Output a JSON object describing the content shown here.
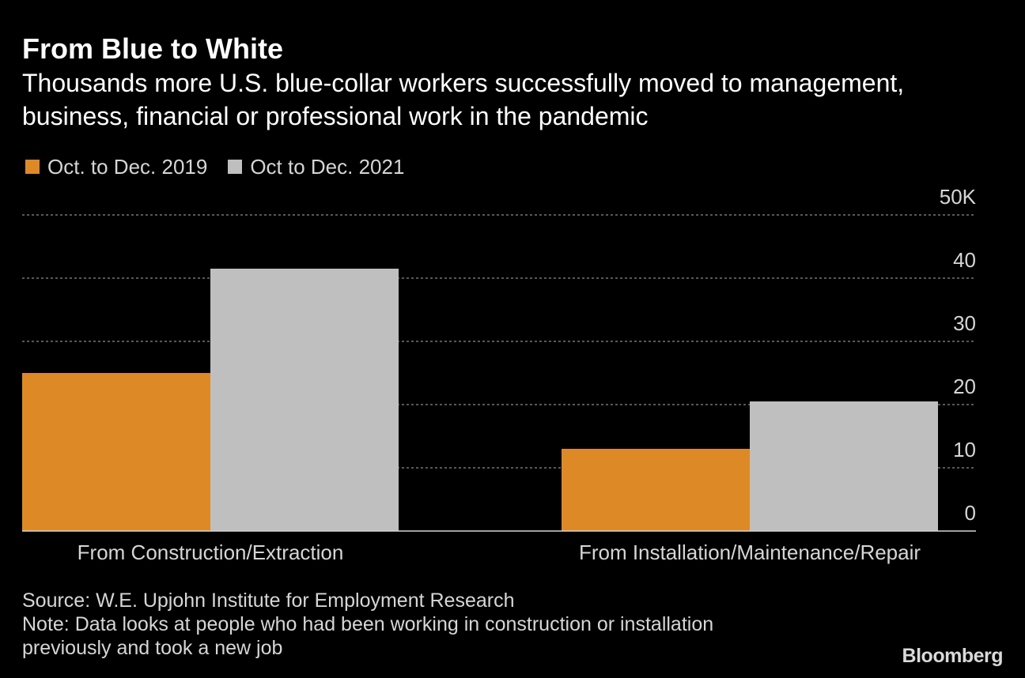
{
  "header": {
    "title": "From Blue to White",
    "subtitle": "Thousands more U.S. blue-collar workers successfully moved to management, business, financial or professional work in the pandemic"
  },
  "legend": {
    "items": [
      {
        "label": "Oct. to Dec. 2019",
        "color": "#dd8a26"
      },
      {
        "label": "Oct to Dec. 2021",
        "color": "#bfbfbf"
      }
    ]
  },
  "footer": {
    "source": "Source: W.E. Upjohn Institute for Employment Research",
    "note_line1": "Note: Data looks at people who had been working in construction or installation",
    "note_line2": "previously and took a new job",
    "logo": "Bloomberg"
  },
  "chart_data": {
    "type": "bar",
    "title": "From Blue to White",
    "subtitle": "Thousands more U.S. blue-collar workers successfully moved to management, business, financial or professional work in the pandemic",
    "categories": [
      "From Construction/Extraction",
      "From Installation/Maintenance/Repair"
    ],
    "series": [
      {
        "name": "Oct. to Dec. 2019",
        "values": [
          25,
          13
        ],
        "color": "#dd8a26"
      },
      {
        "name": "Oct to Dec. 2021",
        "values": [
          41.5,
          20.5
        ],
        "color": "#bfbfbf"
      }
    ],
    "xlabel": "",
    "ylabel": "",
    "ylim": [
      0,
      50
    ],
    "yticks": [
      0,
      10,
      20,
      30,
      40,
      50
    ],
    "ytick_labels": [
      "0",
      "10",
      "20",
      "30",
      "40",
      "50K"
    ],
    "grid": true,
    "legend_position": "top-left",
    "y_axis_position": "right"
  }
}
